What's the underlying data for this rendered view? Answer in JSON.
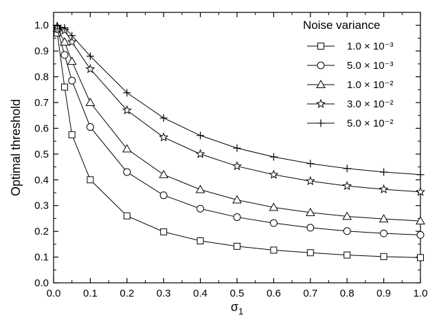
{
  "chart_data": {
    "type": "line",
    "xlabel": "σ",
    "xlabel_sub": "1",
    "ylabel": "Optimal threshold",
    "xlim": [
      0,
      1
    ],
    "ylim": [
      0,
      1.05
    ],
    "x_ticks": [
      "0.0",
      "0.1",
      "0.2",
      "0.3",
      "0.4",
      "0.5",
      "0.6",
      "0.7",
      "0.8",
      "0.9",
      "1.0"
    ],
    "y_ticks": [
      "0.0",
      "0.1",
      "0.2",
      "0.3",
      "0.4",
      "0.5",
      "0.6",
      "0.7",
      "0.8",
      "0.9",
      "1.0"
    ],
    "grid": false,
    "legend": {
      "title": "Noise variance",
      "placement": "top-right"
    },
    "x": [
      0.01,
      0.03,
      0.05,
      0.1,
      0.2,
      0.3,
      0.4,
      0.5,
      0.6,
      0.7,
      0.8,
      0.9,
      1.0
    ],
    "series": [
      {
        "name": "1.0 × 10⁻³",
        "marker": "square",
        "values": [
          0.97,
          0.76,
          0.575,
          0.4,
          0.26,
          0.198,
          0.163,
          0.142,
          0.127,
          0.117,
          0.108,
          0.102,
          0.098
        ]
      },
      {
        "name": "5.0 × 10⁻³",
        "marker": "circle",
        "values": [
          0.985,
          0.885,
          0.785,
          0.605,
          0.43,
          0.34,
          0.288,
          0.255,
          0.232,
          0.214,
          0.201,
          0.192,
          0.186
        ]
      },
      {
        "name": "1.0 × 10⁻²",
        "marker": "triangle",
        "values": [
          0.99,
          0.935,
          0.86,
          0.7,
          0.52,
          0.42,
          0.362,
          0.322,
          0.293,
          0.273,
          0.258,
          0.248,
          0.24
        ]
      },
      {
        "name": "3.0 × 10⁻²",
        "marker": "star",
        "values": [
          0.995,
          0.98,
          0.935,
          0.83,
          0.67,
          0.565,
          0.5,
          0.453,
          0.42,
          0.395,
          0.376,
          0.363,
          0.353
        ]
      },
      {
        "name": "5.0 × 10⁻²",
        "marker": "plus",
        "values": [
          0.998,
          0.99,
          0.96,
          0.88,
          0.738,
          0.64,
          0.572,
          0.523,
          0.489,
          0.463,
          0.444,
          0.43,
          0.42
        ]
      }
    ]
  }
}
